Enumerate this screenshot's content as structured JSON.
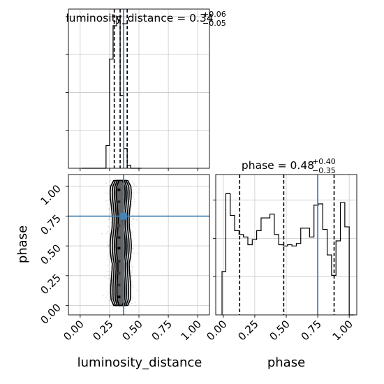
{
  "chart_data": {
    "type": "corner",
    "parameters": [
      "luminosity_distance",
      "phase"
    ],
    "truth_color": "#4682b4",
    "panels": {
      "luminosity_distance_hist": {
        "type": "histogram",
        "title": {
          "prefix": "luminosity_distance = ",
          "value": "0.34",
          "plus": "+0.06",
          "minus": "−0.05"
        },
        "xlim": [
          -0.1,
          1.1
        ],
        "ylim": [
          0,
          1.05
        ],
        "bin_edges": [
          0.19,
          0.22,
          0.25,
          0.28,
          0.31,
          0.34,
          0.37,
          0.4,
          0.43,
          0.46,
          0.49,
          0.52
        ],
        "values": [
          0.0,
          0.15,
          0.72,
          0.94,
          1.0,
          0.48,
          0.13,
          0.02,
          0.0,
          0.0,
          0.0
        ],
        "quantiles": [
          0.29,
          0.34,
          0.4
        ],
        "truth": 0.37,
        "xticks": [
          0.0,
          0.25,
          0.5,
          0.75,
          1.0
        ],
        "yticks": [
          0.25,
          0.5,
          0.75,
          1.0
        ]
      },
      "phase_hist": {
        "type": "histogram",
        "title": {
          "prefix": "phase = ",
          "value": "0.48",
          "plus": "+0.40",
          "minus": "−0.35"
        },
        "xlim": [
          -0.06,
          1.06
        ],
        "ylim": [
          0,
          1.1
        ],
        "bin_edges": [
          -0.01,
          0.02,
          0.055,
          0.09,
          0.125,
          0.16,
          0.195,
          0.23,
          0.265,
          0.3,
          0.335,
          0.37,
          0.405,
          0.44,
          0.475,
          0.51,
          0.545,
          0.58,
          0.615,
          0.65,
          0.685,
          0.72,
          0.755,
          0.79,
          0.825,
          0.86,
          0.895,
          0.93,
          0.965,
          1.0,
          1.04
        ],
        "values": [
          0.34,
          0.95,
          0.78,
          0.66,
          0.63,
          0.61,
          0.55,
          0.59,
          0.66,
          0.76,
          0.76,
          0.79,
          0.63,
          0.55,
          0.54,
          0.55,
          0.54,
          0.56,
          0.68,
          0.68,
          0.61,
          0.86,
          0.87,
          0.67,
          0.47,
          0.31,
          0.58,
          0.88,
          0.69,
          0.0
        ],
        "quantiles": [
          0.13,
          0.48,
          0.88
        ],
        "truth": 0.75,
        "xticks": [
          0.0,
          0.25,
          0.5,
          0.75,
          1.0
        ],
        "xtick_labels": [
          "0.00",
          "0.25",
          "0.50",
          "0.75",
          "1.00"
        ],
        "xlabel": "phase",
        "yticks": [
          0.3,
          0.6,
          0.9
        ]
      },
      "joint": {
        "type": "2d_density",
        "xlim": [
          -0.1,
          1.1
        ],
        "ylim": [
          -0.08,
          1.1
        ],
        "truth": [
          0.37,
          0.75
        ],
        "contour_center_x": 0.345,
        "contour_ys": [
          0.0,
          0.05,
          0.1,
          0.15,
          0.2,
          0.25,
          0.3,
          0.35,
          0.4,
          0.45,
          0.5,
          0.55,
          0.6,
          0.65,
          0.7,
          0.75,
          0.8,
          0.85,
          0.9,
          0.95,
          1.0,
          1.05
        ],
        "contour_halfwidths": [
          [
            0.06,
            0.082,
            0.085,
            0.085,
            0.082,
            0.078,
            0.074,
            0.072,
            0.082,
            0.088,
            0.09,
            0.088,
            0.082,
            0.074,
            0.072,
            0.072,
            0.076,
            0.082,
            0.088,
            0.09,
            0.086,
            0.06
          ],
          [
            0.045,
            0.064,
            0.066,
            0.066,
            0.064,
            0.06,
            0.058,
            0.056,
            0.064,
            0.07,
            0.072,
            0.07,
            0.064,
            0.058,
            0.056,
            0.056,
            0.06,
            0.064,
            0.07,
            0.072,
            0.068,
            0.045
          ],
          [
            0.03,
            0.046,
            0.048,
            0.048,
            0.046,
            0.042,
            0.04,
            0.04,
            0.046,
            0.052,
            0.054,
            0.052,
            0.046,
            0.04,
            0.038,
            0.038,
            0.042,
            0.046,
            0.052,
            0.054,
            0.05,
            0.03
          ],
          [
            0.015,
            0.03,
            0.032,
            0.032,
            0.03,
            0.026,
            0.024,
            0.024,
            0.03,
            0.036,
            0.038,
            0.036,
            0.03,
            0.024,
            0.022,
            0.022,
            0.026,
            0.03,
            0.036,
            0.038,
            0.034,
            0.015
          ]
        ],
        "core_cells": [
          {
            "x": 0.33,
            "y": 0.06,
            "d": 0.95
          },
          {
            "x": 0.33,
            "y": 0.16,
            "d": 0.6
          },
          {
            "x": 0.33,
            "y": 0.26,
            "d": 0.55
          },
          {
            "x": 0.33,
            "y": 0.36,
            "d": 0.65
          },
          {
            "x": 0.33,
            "y": 0.47,
            "d": 0.95
          },
          {
            "x": 0.33,
            "y": 0.56,
            "d": 0.7
          },
          {
            "x": 0.33,
            "y": 0.66,
            "d": 0.5
          },
          {
            "x": 0.33,
            "y": 0.86,
            "d": 0.7
          },
          {
            "x": 0.33,
            "y": 0.96,
            "d": 0.9
          }
        ],
        "xticks": [
          0.0,
          0.25,
          0.5,
          0.75,
          1.0
        ],
        "xtick_labels": [
          "0.00",
          "0.25",
          "0.50",
          "0.75",
          "1.00"
        ],
        "yticks": [
          0.0,
          0.25,
          0.5,
          0.75,
          1.0
        ],
        "ytick_labels": [
          "0.00",
          "0.25",
          "0.50",
          "0.75",
          "1.00"
        ],
        "xlabel": "luminosity_distance",
        "ylabel": "phase"
      }
    }
  }
}
